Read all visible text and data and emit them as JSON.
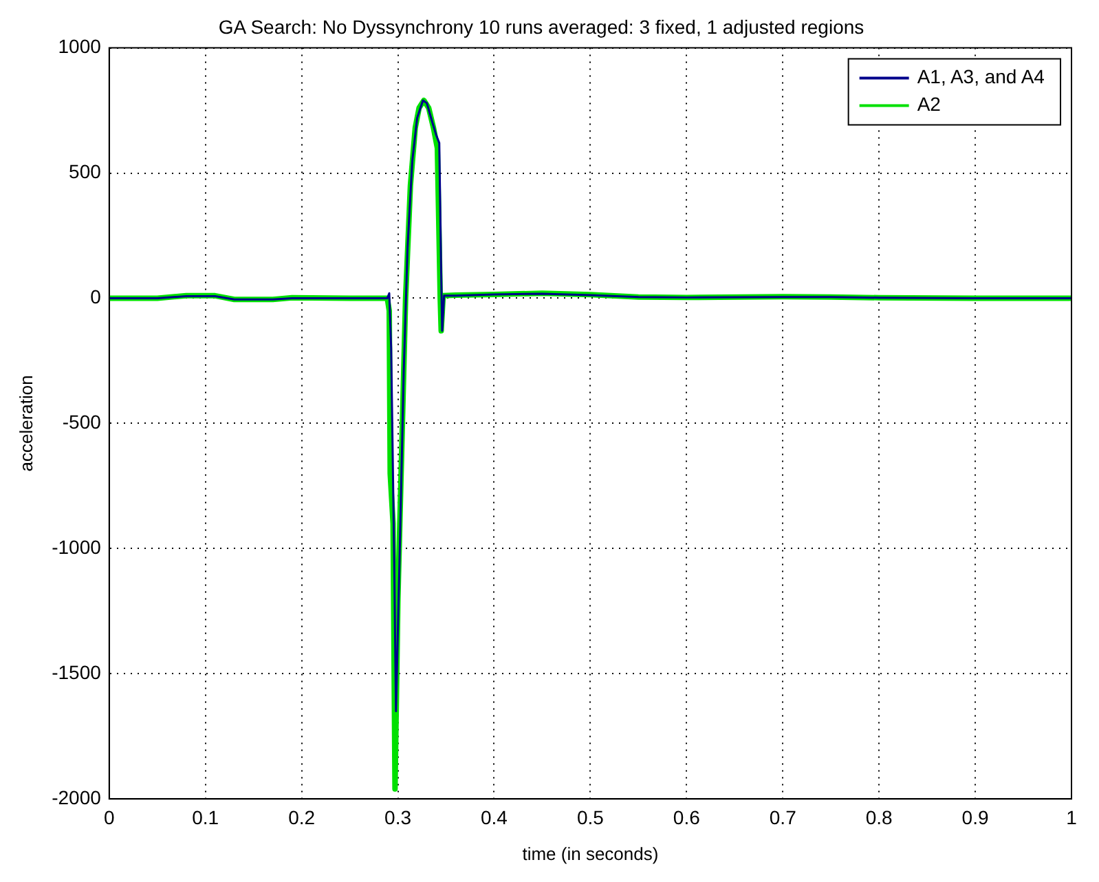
{
  "chart_data": {
    "type": "line",
    "title": "GA Search: No Dyssynchrony 10 runs averaged: 3 fixed, 1 adjusted regions",
    "xlabel": "time (in seconds)",
    "ylabel": "acceleration",
    "xlim": [
      0,
      1
    ],
    "xticks": [
      0,
      0.1,
      0.2,
      0.3,
      0.4,
      0.5,
      0.6,
      0.7,
      0.8,
      0.9,
      1
    ],
    "ylim": [
      -2000,
      1000
    ],
    "yticks": [
      -2000,
      -1500,
      -1000,
      -500,
      0,
      500,
      1000
    ],
    "grid": true,
    "legend": "top right",
    "marker": "none",
    "line_style": "solid",
    "series": [
      {
        "name": "A1, A3, and A4",
        "color": "#00008b",
        "x": [
          0,
          0.05,
          0.08,
          0.11,
          0.13,
          0.17,
          0.19,
          0.25,
          0.289,
          0.291,
          0.293,
          0.296,
          0.298,
          0.302,
          0.306,
          0.31,
          0.315,
          0.32,
          0.326,
          0.33,
          0.336,
          0.34,
          0.343,
          0.345,
          0.346,
          0.348,
          0.36,
          0.4,
          0.45,
          0.5,
          0.55,
          0.6,
          0.7,
          0.75,
          0.8,
          0.9,
          1
        ],
        "values": [
          0,
          0,
          8,
          8,
          -5,
          -5,
          0,
          0,
          0,
          20,
          -200,
          -1000,
          -1650,
          -1000,
          -300,
          200,
          550,
          720,
          790,
          780,
          700,
          650,
          620,
          100,
          -130,
          10,
          10,
          15,
          18,
          12,
          5,
          3,
          5,
          5,
          2,
          0,
          0
        ]
      },
      {
        "name": "A2",
        "color": "#00e000",
        "x": [
          0,
          0.05,
          0.08,
          0.11,
          0.13,
          0.17,
          0.19,
          0.25,
          0.289,
          0.291,
          0.292,
          0.295,
          0.297,
          0.3,
          0.304,
          0.308,
          0.313,
          0.318,
          0.322,
          0.327,
          0.332,
          0.337,
          0.341,
          0.344,
          0.345,
          0.347,
          0.36,
          0.4,
          0.45,
          0.5,
          0.55,
          0.6,
          0.7,
          0.75,
          0.8,
          0.9,
          1
        ],
        "values": [
          0,
          0,
          10,
          10,
          -5,
          -5,
          2,
          0,
          0,
          -50,
          -700,
          -900,
          -1960,
          -1200,
          -600,
          0,
          450,
          680,
          760,
          790,
          760,
          680,
          600,
          0,
          -130,
          10,
          12,
          15,
          20,
          14,
          5,
          3,
          6,
          5,
          2,
          0,
          0
        ]
      }
    ]
  }
}
